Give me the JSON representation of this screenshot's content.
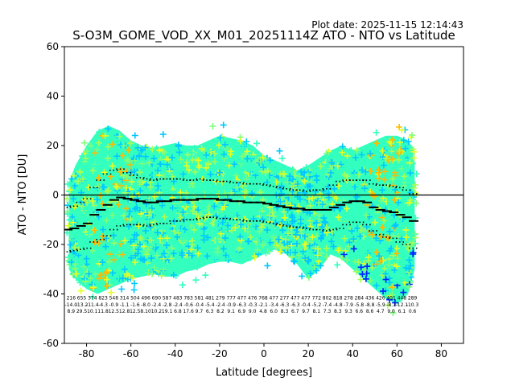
{
  "chart_data": {
    "type": "scatter",
    "plot_date": "Plot date: 2025-11-15 12:14:43",
    "title": "S-O3M_GOME_VOD_XX_M01_20251114Z ATO - NTO vs Latitude",
    "xlabel": "Latitude [degrees]",
    "ylabel": "ATO - NTO [DU]",
    "xlim": [
      -90,
      90
    ],
    "ylim": [
      -60,
      60
    ],
    "xticks": [
      -80,
      -60,
      -40,
      -20,
      0,
      20,
      40,
      60,
      80
    ],
    "yticks": [
      -60,
      -40,
      -20,
      0,
      20,
      40,
      60
    ],
    "reference_line": 0,
    "colors": {
      "main": "#33ffbf",
      "cyan": "#00c8ff",
      "lime": "#a8ff55",
      "yellow": "#e6ff22",
      "orange": "#ffba00",
      "blue": "#0022ff",
      "green": "#7dff7a",
      "axes": "#000000"
    },
    "envelope": {
      "lat": [
        -88,
        -85,
        -80,
        -75,
        -70,
        -65,
        -60,
        -55,
        -50,
        -45,
        -40,
        -35,
        -30,
        -25,
        -20,
        -15,
        -10,
        -5,
        0,
        5,
        10,
        15,
        20,
        25,
        30,
        35,
        40,
        45,
        50,
        55,
        60,
        65,
        68
      ],
      "upper": [
        5,
        12,
        20,
        26,
        28,
        26,
        22,
        20,
        19,
        20,
        21,
        20,
        20,
        22,
        24,
        23,
        22,
        20,
        16,
        14,
        12,
        10,
        12,
        15,
        18,
        20,
        18,
        20,
        22,
        24,
        24,
        22,
        18
      ],
      "lower": [
        -30,
        -34,
        -38,
        -40,
        -38,
        -36,
        -34,
        -33,
        -32,
        -33,
        -33,
        -31,
        -30,
        -28,
        -27,
        -27,
        -28,
        -26,
        -24,
        -22,
        -24,
        -28,
        -34,
        -30,
        -24,
        -26,
        -30,
        -34,
        -38,
        -42,
        -44,
        -40,
        -30
      ]
    },
    "bins": {
      "lat": [
        -88.5,
        -85.5,
        -82.5,
        -79.5,
        -76.5,
        -73.5,
        -70.5,
        -67.5,
        -64.5,
        -61.5,
        -58.5,
        -55.5,
        -52.5,
        -49.5,
        -46.5,
        -43.5,
        -40.5,
        -37.5,
        -34.5,
        -31.5,
        -28.5,
        -25.5,
        -22.5,
        -19.5,
        -16.5,
        -13.5,
        -10.5,
        -7.5,
        -4.5,
        -1.5,
        1.5,
        4.5,
        7.5,
        10.5,
        13.5,
        16.5,
        19.5,
        22.5,
        25.5,
        28.5,
        31.5,
        34.5,
        37.5,
        40.5,
        43.5,
        46.5,
        49.5,
        52.5,
        55.5,
        58.5,
        61.5,
        64.5,
        67.5
      ],
      "median": [
        -14,
        -13.5,
        -12.5,
        -11.5,
        -8,
        -6,
        -4,
        -2,
        -1,
        -1.5,
        -2,
        -2.5,
        -3,
        -3,
        -2.5,
        -2.5,
        -2,
        -2,
        -2,
        -2,
        -1.5,
        -1.5,
        -1.5,
        -2,
        -2,
        -2.5,
        -2.5,
        -3,
        -3,
        -3,
        -3.5,
        -4,
        -4.5,
        -5,
        -5.5,
        -5.5,
        -6,
        -6,
        -6,
        -6,
        -5,
        -4,
        -3,
        -2.5,
        -2.5,
        -3,
        -5,
        -6,
        -6.5,
        -7,
        -8,
        -9,
        -10.5
      ],
      "std": [
        9,
        9,
        9.5,
        10,
        11,
        12,
        12.5,
        12,
        11.5,
        10.5,
        10,
        9.5,
        9.5,
        9,
        9,
        9,
        8.5,
        8.5,
        8,
        8,
        8,
        7.5,
        7.5,
        7.5,
        7.5,
        7.5,
        7.5,
        7.5,
        7.5,
        7.5,
        7.5,
        7.5,
        7.5,
        7.5,
        7.5,
        7.5,
        7.5,
        8,
        8,
        8.5,
        9,
        9.5,
        9,
        8.5,
        8.5,
        9,
        9.5,
        10,
        10.5,
        10.5,
        11,
        11,
        11
      ]
    },
    "annotations": {
      "counts": [
        "216",
        "655",
        "374",
        "823",
        "548",
        "314",
        "504",
        "496",
        "690",
        "587",
        "483",
        "783",
        "581",
        "481",
        "279",
        "777",
        "477",
        "476",
        "768",
        "477",
        "277",
        "477",
        "477",
        "772",
        "802",
        "818",
        "278",
        "284",
        "436",
        "426",
        "401",
        "448",
        "289"
      ],
      "means": [
        "-14.0",
        "-13.2",
        "-11.4",
        "-4.3",
        "-0.9",
        "-1.1",
        "-1.6",
        "-8.0",
        "-2.4",
        "-2.8",
        "-2.4",
        "-0.6",
        "-0.4",
        "-5.4",
        "-2.4",
        "-0.9",
        "-6.3",
        "-0.3",
        "-2.1",
        "-3.4",
        "-6.3",
        "-6.3",
        "-0.4",
        "-5.2",
        "-7.4",
        "-4.8",
        "-7.9",
        "-5.8",
        "-8.8",
        "-5.9",
        "-8.1",
        "-12.1",
        "-10.3"
      ],
      "stds": [
        "8.9",
        "29.5",
        "10.1",
        "11.8",
        "12.5",
        "12.8",
        "12.5",
        "8.10",
        "10.2",
        "19.1",
        "6.8",
        "17.6",
        "9.7",
        "6.3",
        "8.2",
        "9.1",
        "6.9",
        "9.0",
        "4.8",
        "6.0",
        "8.3",
        "6.7",
        "9.7",
        "8.1",
        "7.3",
        "8.3",
        "9.3",
        "6.6",
        "8.6",
        "4.7",
        "9.0",
        "6.1",
        "0.6"
      ]
    }
  }
}
